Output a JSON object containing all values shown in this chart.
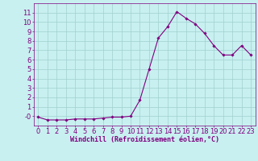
{
  "x": [
    0,
    1,
    2,
    3,
    4,
    5,
    6,
    7,
    8,
    9,
    10,
    11,
    12,
    13,
    14,
    15,
    16,
    17,
    18,
    19,
    20,
    21,
    22,
    23
  ],
  "y": [
    -0.1,
    -0.4,
    -0.4,
    -0.4,
    -0.3,
    -0.3,
    -0.3,
    -0.2,
    -0.1,
    -0.1,
    0.0,
    1.7,
    5.0,
    8.3,
    9.5,
    11.1,
    10.4,
    9.8,
    8.8,
    7.5,
    6.5,
    6.5,
    7.5,
    6.5
  ],
  "line_color": "#800080",
  "marker": "D",
  "marker_size": 1.8,
  "bg_color": "#c8f0f0",
  "grid_color": "#a0d0d0",
  "xlabel": "Windchill (Refroidissement éolien,°C)",
  "xlabel_fontsize": 6,
  "tick_fontsize": 6,
  "ylim": [
    -1,
    12
  ],
  "xlim": [
    -0.5,
    23.5
  ],
  "yticks": [
    0,
    1,
    2,
    3,
    4,
    5,
    6,
    7,
    8,
    9,
    10,
    11
  ],
  "xticks": [
    0,
    1,
    2,
    3,
    4,
    5,
    6,
    7,
    8,
    9,
    10,
    11,
    12,
    13,
    14,
    15,
    16,
    17,
    18,
    19,
    20,
    21,
    22,
    23
  ]
}
